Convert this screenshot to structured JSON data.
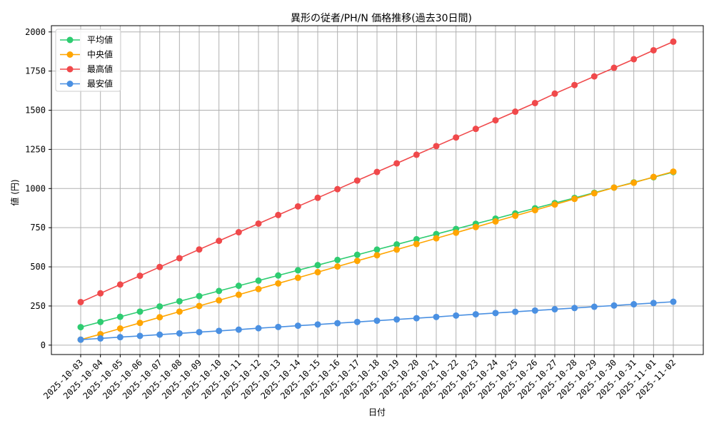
{
  "chart_data": {
    "type": "line",
    "title": "異形の従者/PH/N 価格推移(過去30日間)",
    "xlabel": "日付",
    "ylabel": "値 (円)",
    "ylim": [
      -60,
      2040
    ],
    "y_ticks": [
      0,
      250,
      500,
      750,
      1000,
      1250,
      1500,
      1750,
      2000
    ],
    "grid": true,
    "legend_position": "top-left",
    "categories": [
      "2025-10-03",
      "2025-10-04",
      "2025-10-05",
      "2025-10-06",
      "2025-10-07",
      "2025-10-08",
      "2025-10-09",
      "2025-10-10",
      "2025-10-11",
      "2025-10-12",
      "2025-10-13",
      "2025-10-14",
      "2025-10-15",
      "2025-10-16",
      "2025-10-17",
      "2025-10-18",
      "2025-10-19",
      "2025-10-20",
      "2025-10-21",
      "2025-10-22",
      "2025-10-23",
      "2025-10-24",
      "2025-10-25",
      "2025-10-26",
      "2025-10-27",
      "2025-10-28",
      "2025-10-29",
      "2025-10-30",
      "2025-10-31",
      "2025-11-01",
      "2025-11-02"
    ],
    "series": [
      {
        "name": "平均値",
        "color": "#2ecc71",
        "values": [
          115,
          148,
          181,
          214,
          247,
          280,
          313,
          346,
          379,
          412,
          445,
          478,
          511,
          544,
          577,
          610,
          643,
          676,
          709,
          742,
          775,
          808,
          841,
          874,
          907,
          940,
          973,
          1006,
          1039,
          1072,
          1105
        ]
      },
      {
        "name": "中央値",
        "color": "#ffa500",
        "values": [
          35,
          70,
          106,
          142,
          178,
          214,
          250,
          286,
          322,
          358,
          394,
          430,
          466,
          502,
          538,
          574,
          610,
          646,
          682,
          718,
          754,
          790,
          826,
          862,
          898,
          934,
          970,
          1006,
          1037,
          1074,
          1108
        ]
      },
      {
        "name": "最高値",
        "color": "#f0494b",
        "values": [
          275,
          331,
          387,
          443,
          499,
          555,
          611,
          666,
          721,
          776,
          831,
          886,
          941,
          996,
          1051,
          1106,
          1161,
          1216,
          1271,
          1326,
          1381,
          1436,
          1491,
          1546,
          1606,
          1661,
          1716,
          1771,
          1826,
          1883,
          1938
        ]
      },
      {
        "name": "最安値",
        "color": "#4a90e2",
        "values": [
          35,
          43,
          51,
          59,
          67,
          75,
          83,
          91,
          99,
          108,
          116,
          124,
          132,
          140,
          148,
          156,
          164,
          172,
          180,
          189,
          197,
          205,
          213,
          221,
          229,
          237,
          245,
          253,
          261,
          269,
          277
        ]
      }
    ]
  }
}
